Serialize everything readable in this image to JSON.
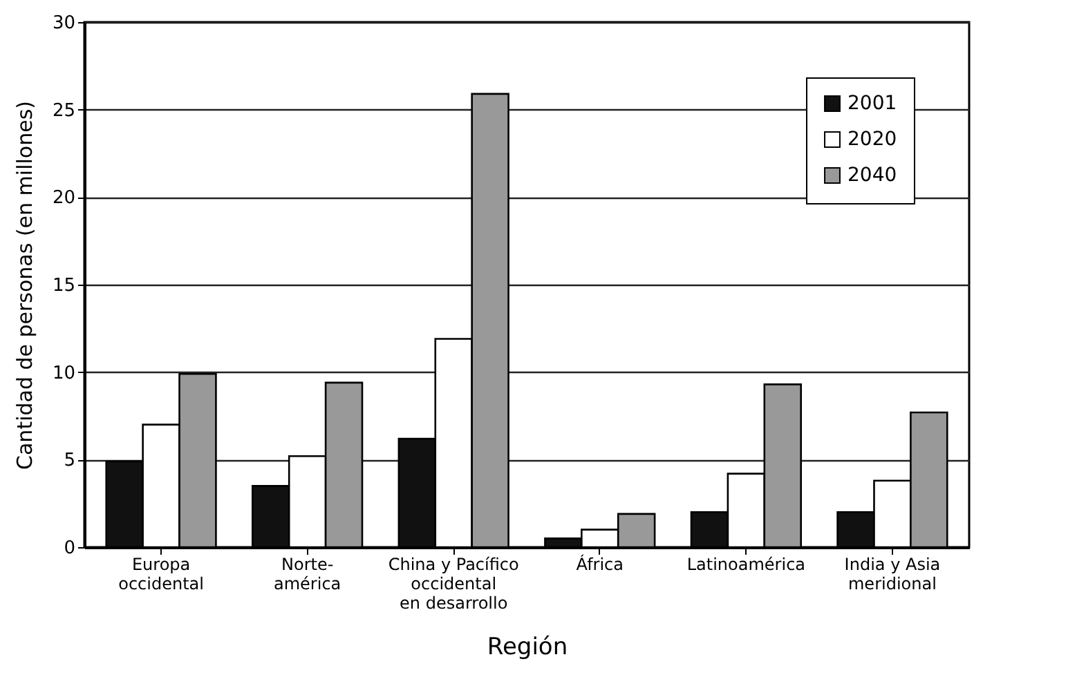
{
  "chart_data": {
    "type": "bar",
    "xlabel": "Región",
    "ylabel": "Cantidad de personas (en millones)",
    "categories": [
      "Europa\noccidental",
      "Norte-\namérica",
      "China y Pacífico\noccidental\nen desarrollo",
      "África",
      "Latinoamérica",
      "India y Asia\nmeridional"
    ],
    "series": [
      {
        "name": "2001",
        "color": "#111111",
        "values": [
          4.9,
          3.5,
          6.2,
          0.5,
          2.0,
          2.0
        ]
      },
      {
        "name": "2020",
        "color": "#ffffff",
        "values": [
          7.0,
          5.2,
          11.9,
          1.0,
          4.2,
          3.8
        ]
      },
      {
        "name": "2040",
        "color": "#999999",
        "values": [
          9.9,
          9.4,
          25.9,
          1.9,
          9.3,
          7.7
        ]
      }
    ],
    "ylim": [
      0,
      30
    ],
    "yticks": [
      0,
      5,
      10,
      15,
      20,
      25,
      30
    ],
    "grid": "y",
    "legend": "top right"
  }
}
